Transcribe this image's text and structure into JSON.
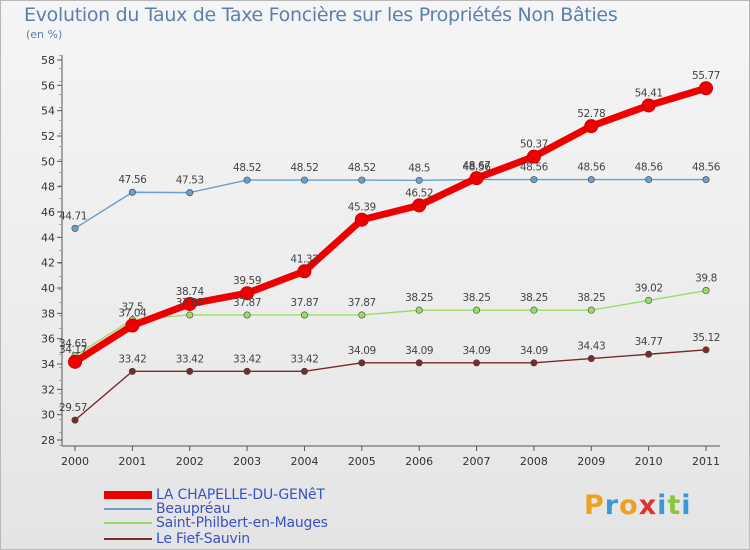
{
  "title": "Evolution du Taux de Taxe Foncière sur les Propriétés Non Bâties",
  "unit": "(en %)",
  "logo": {
    "letters": [
      "P",
      "r",
      "o",
      "x",
      "i",
      "t",
      "i"
    ],
    "colors": [
      "#f0a020",
      "#3a9ad9",
      "#f0a020",
      "#e03030",
      "#3a9ad9",
      "#8cc63f",
      "#3a9ad9"
    ]
  },
  "chart_data": {
    "type": "line",
    "title": "Evolution du Taux de Taxe Foncière sur les Propriétés Non Bâties",
    "ylabel": "(en %)",
    "xlabel": "",
    "categories": [
      "2000",
      "2001",
      "2002",
      "2003",
      "2004",
      "2005",
      "2006",
      "2007",
      "2008",
      "2009",
      "2010",
      "2011"
    ],
    "ylim": [
      28,
      58
    ],
    "yticks": [
      "28",
      "30",
      "32",
      "34",
      "36",
      "38",
      "40",
      "42",
      "44",
      "46",
      "48",
      "50",
      "52",
      "54",
      "56",
      "58"
    ],
    "grid": false,
    "series": [
      {
        "name": "LA CHAPELLE-DU-GENêT",
        "color": "#ee0000",
        "values": [
          34.17,
          37.04,
          38.74,
          39.59,
          41.32,
          45.39,
          46.52,
          48.67,
          50.37,
          52.78,
          54.41,
          55.77
        ],
        "labels": [
          "34.17",
          "37.04",
          "38.74",
          "39.59",
          "41.32",
          "45.39",
          "46.52",
          "48.67",
          "50.37",
          "52.78",
          "54.41",
          "55.77"
        ]
      },
      {
        "name": "Beaupréau",
        "color": "#6a9fcf",
        "values": [
          44.71,
          47.56,
          47.53,
          48.52,
          48.52,
          48.52,
          48.5,
          48.56,
          48.56,
          48.56,
          48.56,
          48.56
        ],
        "labels": [
          "44.71",
          "47.56",
          "47.53",
          "48.52",
          "48.52",
          "48.52",
          "48.5",
          "48.56",
          "48.56",
          "48.56",
          "48.56",
          "48.56"
        ]
      },
      {
        "name": "Saint-Philbert-en-Mauges",
        "color": "#99dd66",
        "values": [
          34.65,
          37.5,
          37.87,
          37.87,
          37.87,
          37.87,
          38.25,
          38.25,
          38.25,
          38.25,
          39.02,
          39.8
        ],
        "labels": [
          "34.65",
          "37.5",
          "37.87",
          "37.87",
          "37.87",
          "37.87",
          "38.25",
          "38.25",
          "38.25",
          "38.25",
          "39.02",
          "39.8"
        ]
      },
      {
        "name": "Le Fief-Sauvin",
        "color": "#7a2a2a",
        "values": [
          29.57,
          33.42,
          33.42,
          33.42,
          33.42,
          34.09,
          34.09,
          34.09,
          34.09,
          34.43,
          34.77,
          35.12
        ],
        "labels": [
          "29.57",
          "33.42",
          "33.42",
          "33.42",
          "33.42",
          "34.09",
          "34.09",
          "34.09",
          "34.09",
          "34.43",
          "34.77",
          "35.12"
        ]
      }
    ]
  }
}
